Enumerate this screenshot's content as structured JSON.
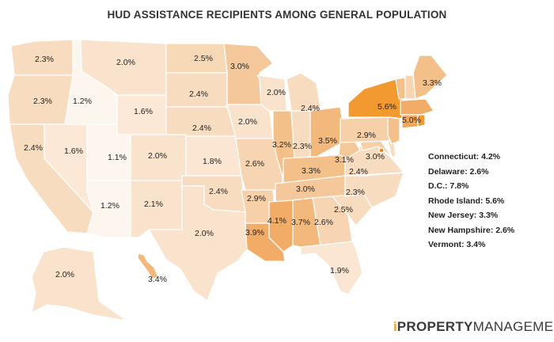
{
  "title": "HUD ASSISTANCE RECIPIENTS AMONG GENERAL POPULATION",
  "colors": {
    "lowest": "#fdf6ee",
    "low": "#f8dcc0",
    "mid": "#f5c89c",
    "high": "#f1ad68",
    "highest": "#f29a30"
  },
  "states": [
    {
      "id": "wa",
      "name": "Washington",
      "value": "2.3%"
    },
    {
      "id": "or",
      "name": "Oregon",
      "value": "2.3%"
    },
    {
      "id": "ca",
      "name": "California",
      "value": "2.4%"
    },
    {
      "id": "id",
      "name": "Idaho",
      "value": "1.2%"
    },
    {
      "id": "nv",
      "name": "Nevada",
      "value": "1.6%"
    },
    {
      "id": "ut",
      "name": "Utah",
      "value": "1.1%"
    },
    {
      "id": "az",
      "name": "Arizona",
      "value": "1.2%"
    },
    {
      "id": "mt",
      "name": "Montana",
      "value": "2.0%"
    },
    {
      "id": "wy",
      "name": "Wyoming",
      "value": "1.6%"
    },
    {
      "id": "co",
      "name": "Colorado",
      "value": "2.0%"
    },
    {
      "id": "nm",
      "name": "New Mexico",
      "value": "2.1%"
    },
    {
      "id": "nd",
      "name": "North Dakota",
      "value": "2.5%"
    },
    {
      "id": "sd",
      "name": "South Dakota",
      "value": "2.4%"
    },
    {
      "id": "ne",
      "name": "Nebraska",
      "value": "2.4%"
    },
    {
      "id": "ks",
      "name": "Kansas",
      "value": "1.8%"
    },
    {
      "id": "ok",
      "name": "Oklahoma",
      "value": "2.4%"
    },
    {
      "id": "tx",
      "name": "Texas",
      "value": "2.0%"
    },
    {
      "id": "mn",
      "name": "Minnesota",
      "value": "3.0%"
    },
    {
      "id": "ia",
      "name": "Iowa",
      "value": "2.0%"
    },
    {
      "id": "mo",
      "name": "Missouri",
      "value": "2.6%"
    },
    {
      "id": "ar",
      "name": "Arkansas",
      "value": "2.9%"
    },
    {
      "id": "la",
      "name": "Louisiana",
      "value": "3.9%"
    },
    {
      "id": "wi",
      "name": "Wisconsin",
      "value": "2.0%"
    },
    {
      "id": "il",
      "name": "Illinois",
      "value": "3.2%"
    },
    {
      "id": "in",
      "name": "Indiana",
      "value": "2.3%"
    },
    {
      "id": "mi",
      "name": "Michigan",
      "value": "2.4%"
    },
    {
      "id": "oh",
      "name": "Ohio",
      "value": "3.5%"
    },
    {
      "id": "ky",
      "name": "Kentucky",
      "value": "3.3%"
    },
    {
      "id": "tn",
      "name": "Tennessee",
      "value": "3.0%"
    },
    {
      "id": "ms",
      "name": "Mississippi",
      "value": "4.1%"
    },
    {
      "id": "al",
      "name": "Alabama",
      "value": "3.7%"
    },
    {
      "id": "ga",
      "name": "Georgia",
      "value": "2.6%"
    },
    {
      "id": "fl",
      "name": "Florida",
      "value": "1.9%"
    },
    {
      "id": "sc",
      "name": "South Carolina",
      "value": "2.5%"
    },
    {
      "id": "nc",
      "name": "North Carolina",
      "value": "2.3%"
    },
    {
      "id": "va",
      "name": "Virginia",
      "value": "2.4%"
    },
    {
      "id": "wv",
      "name": "West Virginia",
      "value": "3.1%"
    },
    {
      "id": "md",
      "name": "Maryland",
      "value": "3.0%"
    },
    {
      "id": "pa",
      "name": "Pennsylvania",
      "value": "2.9%"
    },
    {
      "id": "ny",
      "name": "New York",
      "value": "5.6%"
    },
    {
      "id": "ma",
      "name": "Massachusetts",
      "value": "5.0%"
    },
    {
      "id": "me",
      "name": "Maine",
      "value": "3.3%"
    },
    {
      "id": "ak",
      "name": "Alaska",
      "value": "2.0%"
    },
    {
      "id": "hi",
      "name": "Hawaii",
      "value": "3.4%"
    }
  ],
  "legend": [
    "Connecticut: 4.2%",
    "Delaware: 2.6%",
    "D.C.: 7.8%",
    "Rhode Island: 5.6%",
    "New Jersey: 3.3%",
    "New Hampshire: 2.6%",
    "Vermont: 3.4%"
  ],
  "brand": {
    "part1": "i",
    "part2": "PROPERTY",
    "part3": "MANAGEMENT"
  }
}
